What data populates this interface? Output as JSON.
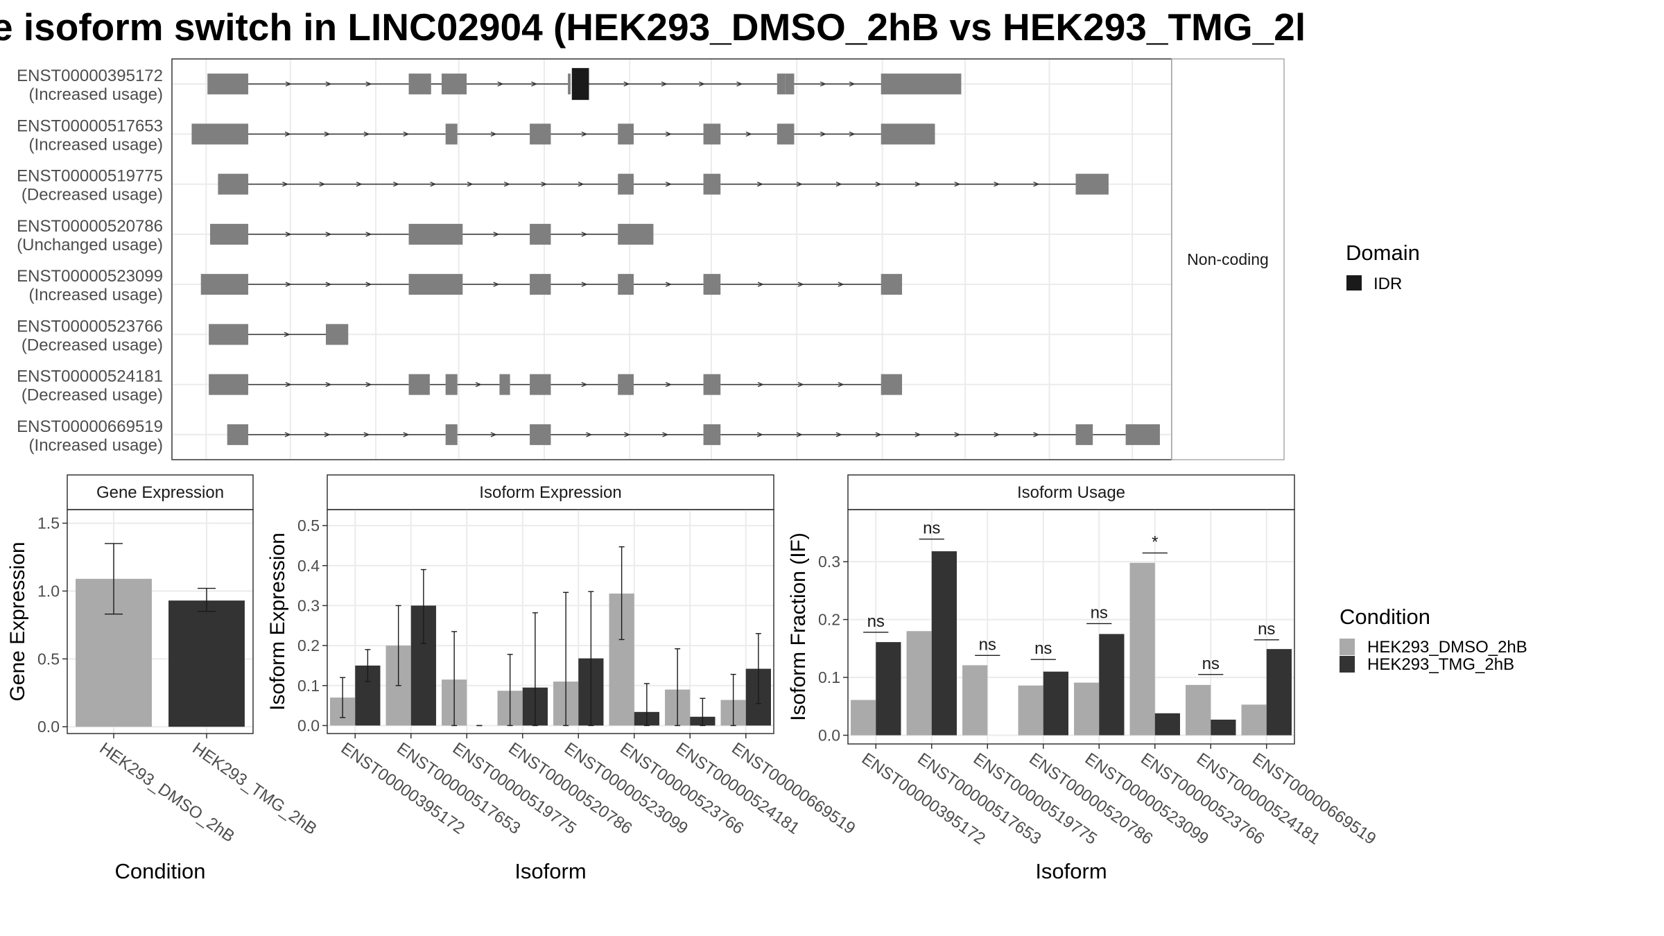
{
  "title": "e isoform switch in LINC02904 (HEK293_DMSO_2hB vs HEK293_TMG_2l",
  "colors": {
    "exon": "#7f7f7f",
    "domain_idr": "#1a1a1a",
    "condition_dmso": "#aaaaaa",
    "condition_tmg": "#333333",
    "grid": "#ebebeb",
    "strip_fill": "#ffffff",
    "text": "#4d4d4d"
  },
  "structure": {
    "facet_label": "Non-coding",
    "legend": {
      "title": "Domain",
      "items": [
        "IDR"
      ]
    },
    "isoforms": [
      {
        "id": "ENST00000395172",
        "usage": "(Increased usage)",
        "exons": [
          [
            27,
            58
          ],
          [
            180,
            190
          ],
          [
            190,
            197
          ],
          [
            205,
            224
          ],
          [
            301,
            303
          ],
          [
            304,
            317
          ],
          [
            460,
            466
          ],
          [
            466,
            473
          ],
          [
            539,
            600
          ]
        ],
        "domains": [
          [
            304,
            317
          ]
        ]
      },
      {
        "id": "ENST00000517653",
        "usage": "(Increased usage)",
        "exons": [
          [
            15,
            58
          ],
          [
            208,
            217
          ],
          [
            272,
            288
          ],
          [
            339,
            351
          ],
          [
            404,
            417
          ],
          [
            460,
            473
          ],
          [
            539,
            580
          ]
        ],
        "domains": []
      },
      {
        "id": "ENST00000519775",
        "usage": "(Decreased usage)",
        "exons": [
          [
            35,
            58
          ],
          [
            339,
            351
          ],
          [
            404,
            417
          ],
          [
            687,
            712
          ]
        ],
        "domains": []
      },
      {
        "id": "ENST00000520786",
        "usage": "(Unchanged usage)",
        "exons": [
          [
            29,
            58
          ],
          [
            180,
            221
          ],
          [
            272,
            288
          ],
          [
            339,
            366
          ]
        ],
        "domains": []
      },
      {
        "id": "ENST00000523099",
        "usage": "(Increased usage)",
        "exons": [
          [
            22,
            58
          ],
          [
            180,
            221
          ],
          [
            272,
            288
          ],
          [
            339,
            351
          ],
          [
            404,
            417
          ],
          [
            539,
            555
          ]
        ],
        "domains": []
      },
      {
        "id": "ENST00000523766",
        "usage": "(Decreased usage)",
        "exons": [
          [
            28,
            58
          ],
          [
            117,
            134
          ]
        ],
        "domains": []
      },
      {
        "id": "ENST00000524181",
        "usage": "(Decreased usage)",
        "exons": [
          [
            28,
            58
          ],
          [
            180,
            196
          ],
          [
            208,
            217
          ],
          [
            249,
            257
          ],
          [
            272,
            288
          ],
          [
            339,
            351
          ],
          [
            404,
            417
          ],
          [
            539,
            555
          ]
        ],
        "domains": []
      },
      {
        "id": "ENST00000669519",
        "usage": "(Increased usage)",
        "exons": [
          [
            42,
            58
          ],
          [
            208,
            217
          ],
          [
            272,
            288
          ],
          [
            404,
            417
          ],
          [
            687,
            700
          ],
          [
            725,
            751
          ]
        ],
        "domains": []
      }
    ]
  },
  "gene_expression": {
    "strip": "Gene Expression",
    "ylabel": "Gene Expression",
    "xlabel": "Condition",
    "ylim": [
      -0.05,
      1.6
    ],
    "yticks": [
      "0.0",
      "0.5",
      "1.0",
      "1.5"
    ],
    "categories": [
      "HEK293_DMSO_2hB",
      "HEK293_TMG_2hB"
    ],
    "values": [
      1.09,
      0.93
    ],
    "err_low": [
      0.83,
      0.85
    ],
    "err_high": [
      1.35,
      1.02
    ]
  },
  "isoform_expression": {
    "strip": "Isoform Expression",
    "ylabel": "Isoform Expression",
    "xlabel": "Isoform",
    "ylim": [
      -0.02,
      0.54
    ],
    "yticks": [
      "0.0",
      "0.1",
      "0.2",
      "0.3",
      "0.4",
      "0.5"
    ],
    "categories": [
      "ENST00000395172",
      "ENST00000517653",
      "ENST00000519775",
      "ENST00000520786",
      "ENST00000523099",
      "ENST00000523766",
      "ENST00000524181",
      "ENST00000669519"
    ],
    "dmso": [
      0.07,
      0.2,
      0.115,
      0.087,
      0.11,
      0.33,
      0.09,
      0.064
    ],
    "tmg": [
      0.15,
      0.3,
      0.0,
      0.095,
      0.168,
      0.034,
      0.022,
      0.142
    ],
    "dmso_err": [
      [
        0.02,
        0.12
      ],
      [
        0.1,
        0.3
      ],
      [
        0.0,
        0.235
      ],
      [
        0.0,
        0.178
      ],
      [
        0.0,
        0.333
      ],
      [
        0.215,
        0.447
      ],
      [
        0.0,
        0.192
      ],
      [
        0.0,
        0.128
      ]
    ],
    "tmg_err": [
      [
        0.11,
        0.19
      ],
      [
        0.205,
        0.39
      ],
      [
        0.0,
        0.0
      ],
      [
        0.0,
        0.282
      ],
      [
        0.0,
        0.335
      ],
      [
        0.0,
        0.105
      ],
      [
        0.0,
        0.068
      ],
      [
        0.055,
        0.23
      ]
    ]
  },
  "isoform_usage": {
    "strip": "Isoform Usage",
    "ylabel": "Isoform Fraction (IF)",
    "xlabel": "Isoform",
    "ylim": [
      -0.015,
      0.39
    ],
    "yticks": [
      "0.0",
      "0.1",
      "0.2",
      "0.3"
    ],
    "categories": [
      "ENST00000395172",
      "ENST00000517653",
      "ENST00000519775",
      "ENST00000520786",
      "ENST00000523099",
      "ENST00000523766",
      "ENST00000524181",
      "ENST00000669519"
    ],
    "dmso": [
      0.061,
      0.18,
      0.121,
      0.086,
      0.091,
      0.298,
      0.087,
      0.053
    ],
    "tmg": [
      0.161,
      0.318,
      0.0,
      0.11,
      0.175,
      0.038,
      0.027,
      0.149
    ],
    "signif": [
      "ns",
      "ns",
      "ns",
      "ns",
      "ns",
      "*",
      "ns",
      "ns"
    ],
    "signif_level": [
      0.178,
      0.339,
      0.138,
      0.131,
      0.193,
      0.315,
      0.105,
      0.165
    ]
  },
  "condition_legend": {
    "title": "Condition",
    "items": [
      "HEK293_DMSO_2hB",
      "HEK293_TMG_2hB"
    ]
  }
}
